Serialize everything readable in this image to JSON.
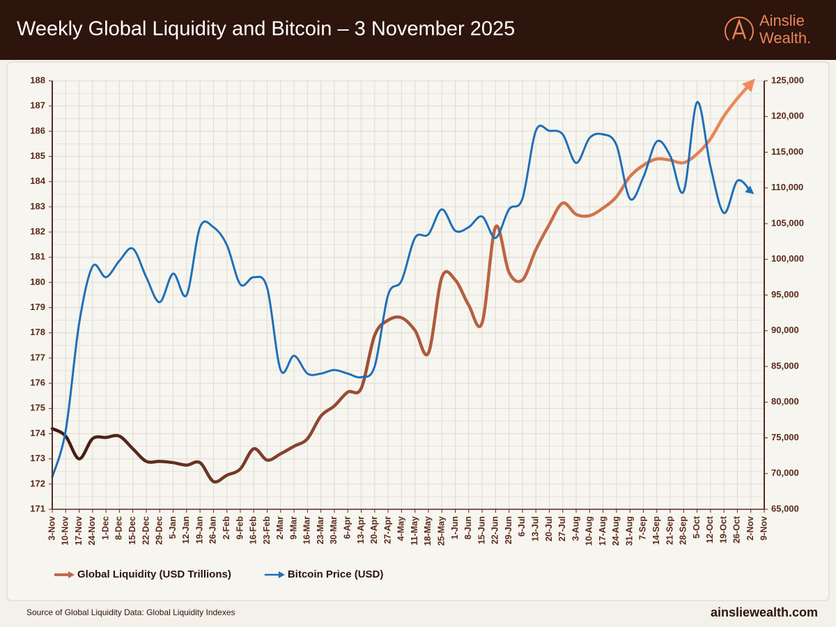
{
  "chart_data": {
    "type": "line",
    "title": "Weekly Global Liquidity and Bitcoin – 3 November 2025",
    "brand": [
      "Ainslie",
      "Wealth."
    ],
    "source": "Source of Global Liquidity Data: Global Liquidity Indexes",
    "website": "ainsliewealth.com",
    "categories": [
      "3-Nov",
      "10-Nov",
      "17-Nov",
      "24-Nov",
      "1-Dec",
      "8-Dec",
      "15-Dec",
      "22-Dec",
      "29-Dec",
      "5-Jan",
      "12-Jan",
      "19-Jan",
      "26-Jan",
      "2-Feb",
      "9-Feb",
      "16-Feb",
      "23-Feb",
      "2-Mar",
      "9-Mar",
      "16-Mar",
      "23-Mar",
      "30-Mar",
      "6-Apr",
      "13-Apr",
      "20-Apr",
      "27-Apr",
      "4-May",
      "11-May",
      "18-May",
      "25-May",
      "1-Jun",
      "8-Jun",
      "15-Jun",
      "22-Jun",
      "29-Jun",
      "6-Jul",
      "13-Jul",
      "20-Jul",
      "27-Jul",
      "3-Aug",
      "10-Aug",
      "17-Aug",
      "24-Aug",
      "31-Aug",
      "7-Sep",
      "14-Sep",
      "21-Sep",
      "28-Sep",
      "5-Oct",
      "12-Oct",
      "19-Oct",
      "26-Oct",
      "2-Nov",
      "9-Nov"
    ],
    "series": [
      {
        "name": "Global Liquidity (USD Trillions)",
        "color": "#c0694a",
        "gradient": [
          "#3d1a12",
          "#a8563a",
          "#f08a5d"
        ],
        "axis": "y",
        "values": [
          174.2,
          173.9,
          173.0,
          173.8,
          173.85,
          173.9,
          173.4,
          172.9,
          172.9,
          172.85,
          172.75,
          172.85,
          172.1,
          172.35,
          172.6,
          173.4,
          172.95,
          173.2,
          173.5,
          173.8,
          174.7,
          175.1,
          175.65,
          175.8,
          177.9,
          178.5,
          178.6,
          178.1,
          177.2,
          180.2,
          180.1,
          179.1,
          178.4,
          182.2,
          180.4,
          180.1,
          181.3,
          182.3,
          183.15,
          182.7,
          182.65,
          182.95,
          183.4,
          184.2,
          184.65,
          184.9,
          184.85,
          184.75,
          185.1,
          185.7,
          186.6,
          187.3,
          187.9,
          null
        ]
      },
      {
        "name": "Bitcoin Price (USD)",
        "color": "#1f6fb8",
        "axis": "y2",
        "values": [
          69500,
          76000,
          91000,
          99000,
          97500,
          99800,
          101500,
          97500,
          94000,
          98000,
          95000,
          104500,
          104500,
          102000,
          96500,
          97500,
          96000,
          84500,
          86500,
          84000,
          84000,
          84500,
          84000,
          83500,
          85000,
          95000,
          97000,
          103000,
          103500,
          107000,
          104000,
          104500,
          106000,
          103000,
          107000,
          108500,
          118000,
          118000,
          117500,
          113500,
          117000,
          117500,
          116000,
          108500,
          111500,
          116500,
          114500,
          109500,
          122000,
          113000,
          106500,
          111000,
          109500,
          null
        ]
      }
    ],
    "ylim": [
      171,
      188
    ],
    "yticks": [
      171,
      172,
      173,
      174,
      175,
      176,
      177,
      178,
      179,
      180,
      181,
      182,
      183,
      184,
      185,
      186,
      187,
      188
    ],
    "y2lim": [
      65000,
      125000
    ],
    "y2ticks": [
      {
        "value": 65000,
        "label": "65,000"
      },
      {
        "value": 70000,
        "label": "70,000"
      },
      {
        "value": 75000,
        "label": "75,000"
      },
      {
        "value": 80000,
        "label": "80,000"
      },
      {
        "value": 85000,
        "label": "85,000"
      },
      {
        "value": 90000,
        "label": "90,000"
      },
      {
        "value": 95000,
        "label": "95,000"
      },
      {
        "value": 100000,
        "label": "100,000"
      },
      {
        "value": 105000,
        "label": "105,000"
      },
      {
        "value": 110000,
        "label": "110,000"
      },
      {
        "value": 115000,
        "label": "115,000"
      },
      {
        "value": 120000,
        "label": "120,000"
      },
      {
        "value": 125000,
        "label": "125,000"
      }
    ],
    "grid": true,
    "legend": "bottom-left"
  }
}
